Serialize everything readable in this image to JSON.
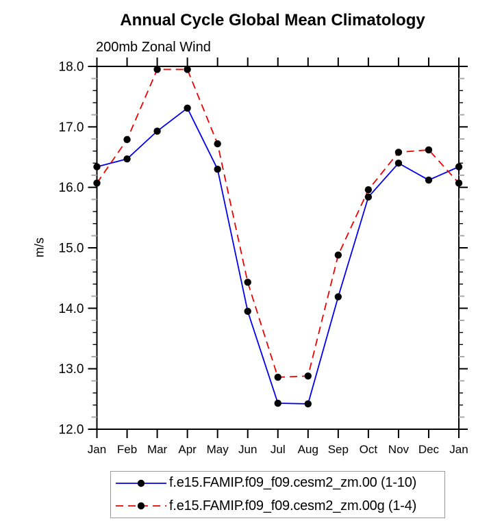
{
  "chart_data": {
    "type": "line",
    "title": "Annual Cycle Global Mean Climatology",
    "subtitle": "200mb Zonal Wind",
    "ylabel": "m/s",
    "x_tick_labels": [
      "Jan",
      "Feb",
      "Mar",
      "Apr",
      "May",
      "Jun",
      "Jul",
      "Aug",
      "Sep",
      "Oct",
      "Nov",
      "Dec",
      "Jan"
    ],
    "ylim": [
      12.0,
      18.0
    ],
    "y_major_step": 1.0,
    "y_minor_step": 0.2,
    "y_tick_labels": [
      "12.0",
      "13.0",
      "14.0",
      "15.0",
      "16.0",
      "17.0",
      "18.0"
    ],
    "grid": false,
    "legend_position": "bottom",
    "axis_color": "#000000",
    "minor_tick_gray": "#a9a9a9",
    "marker": "filled-circle",
    "marker_color": "#000000",
    "series": [
      {
        "name": "f.e15.FAMIP.f09_f09.cesm2_zm.00 (1-10)",
        "color": "#0000ee",
        "line_style": "solid",
        "dash": "",
        "marker_color": "#000000",
        "values": [
          16.34,
          16.47,
          16.93,
          17.31,
          16.3,
          13.95,
          12.43,
          12.42,
          14.19,
          15.84,
          16.4,
          16.12,
          16.34
        ]
      },
      {
        "name": "f.e15.FAMIP.f09_f09.cesm2_zm.00g (1-4)",
        "color": "#ee0000",
        "line_style": "dashed",
        "dash": "11 7",
        "marker_color": "#000000",
        "values": [
          16.07,
          16.79,
          17.95,
          17.95,
          16.72,
          14.43,
          12.86,
          12.88,
          14.88,
          15.96,
          16.58,
          16.62,
          16.07
        ]
      }
    ]
  }
}
